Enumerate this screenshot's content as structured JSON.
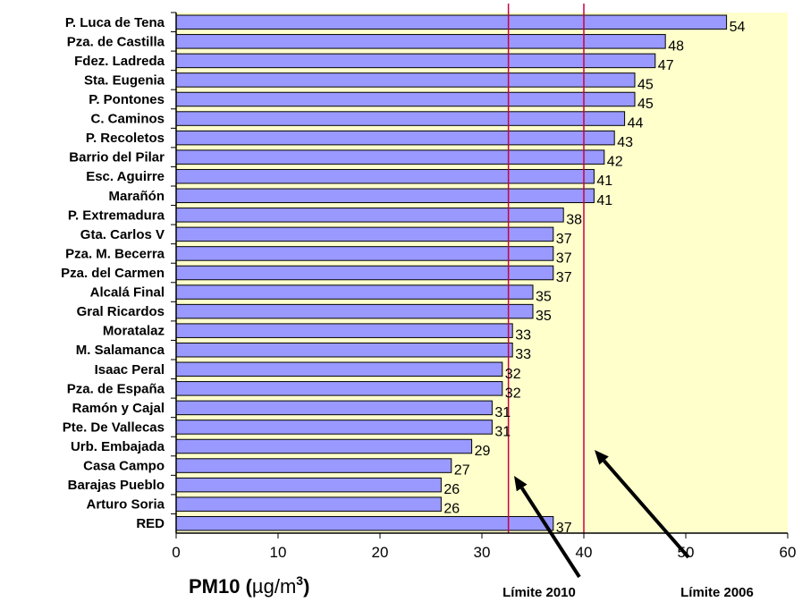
{
  "chart_data": {
    "type": "bar",
    "orientation": "horizontal",
    "categories": [
      "P. Luca de Tena",
      "Pza. de Castilla",
      "Fdez. Ladreda",
      "Sta. Eugenia",
      "P. Pontones",
      "C. Caminos",
      "P. Recoletos",
      "Barrio del Pilar",
      "Esc. Aguirre",
      "Marañón",
      "P. Extremadura",
      "Gta. Carlos V",
      "Pza. M. Becerra",
      "Pza. del Carmen",
      "Alcalá Final",
      "Gral Ricardos",
      "Moratalaz",
      "M. Salamanca",
      "Isaac Peral",
      "Pza. de España",
      "Ramón y Cajal",
      "Pte. De Vallecas",
      "Urb. Embajada",
      "Casa Campo",
      "Barajas Pueblo",
      "Arturo Soria",
      "RED"
    ],
    "values": [
      54,
      48,
      47,
      45,
      45,
      44,
      43,
      42,
      41,
      41,
      38,
      37,
      37,
      37,
      35,
      35,
      33,
      33,
      32,
      32,
      31,
      31,
      29,
      27,
      26,
      26,
      37
    ],
    "bar_color": "#9999ff",
    "bar_stroke": "#000000",
    "plot_background": "#ffffcc",
    "xlim": [
      0,
      60
    ],
    "x_ticks": [
      0,
      10,
      20,
      30,
      40,
      50,
      60
    ],
    "xlabel_main": "PM10 (",
    "xlabel_unit": "µg/m",
    "xlabel_sup": "3",
    "xlabel_close": ")",
    "reference_lines": [
      {
        "value": 32.6,
        "label": "Límite 2010",
        "color": "#cc0044"
      },
      {
        "value": 40,
        "label": "Límite 2006",
        "color": "#cc0044"
      }
    ],
    "grid": false,
    "legend": "none"
  }
}
